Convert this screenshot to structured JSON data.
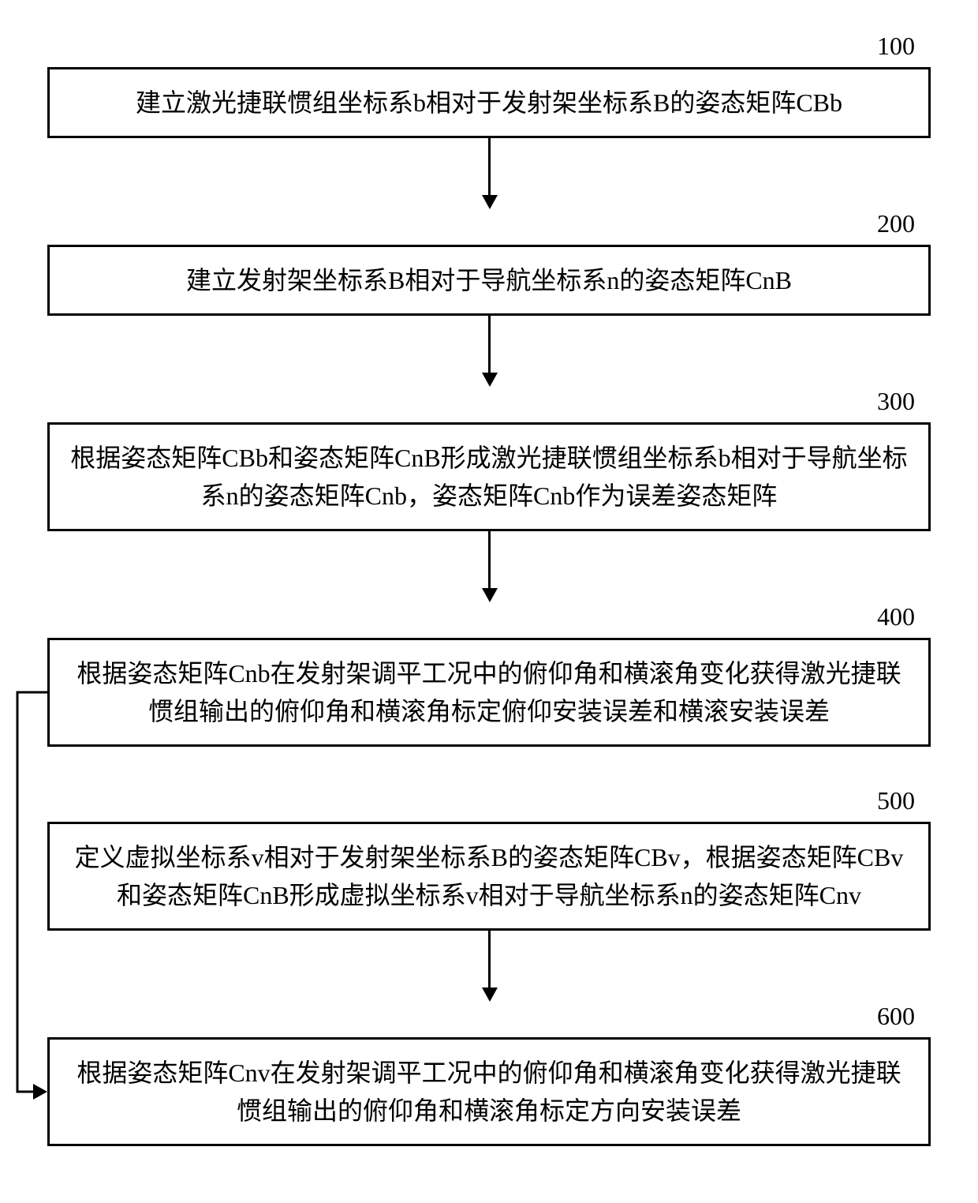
{
  "flowchart": {
    "type": "flowchart",
    "background_color": "#ffffff",
    "border_color": "#000000",
    "text_color": "#000000",
    "border_width": 3,
    "font_size": 32,
    "label_font_size": 32,
    "arrow_length": 90,
    "node_width_pct": 100,
    "nodes": [
      {
        "id": "100",
        "label": "100",
        "text": "建立激光捷联惯组坐标系b相对于发射架坐标系B的姿态矩阵CBb"
      },
      {
        "id": "200",
        "label": "200",
        "text": "建立发射架坐标系B相对于导航坐标系n的姿态矩阵CnB"
      },
      {
        "id": "300",
        "label": "300",
        "text": "根据姿态矩阵CBb和姿态矩阵CnB形成激光捷联惯组坐标系b相对于导航坐标系n的姿态矩阵Cnb，姿态矩阵Cnb作为误差姿态矩阵"
      },
      {
        "id": "400",
        "label": "400",
        "text": "根据姿态矩阵Cnb在发射架调平工况中的俯仰角和横滚角变化获得激光捷联惯组输出的俯仰角和横滚角标定俯仰安装误差和横滚安装误差"
      },
      {
        "id": "500",
        "label": "500",
        "text": "定义虚拟坐标系v相对于发射架坐标系B的姿态矩阵CBv，根据姿态矩阵CBv和姿态矩阵CnB形成虚拟坐标系v相对于导航坐标系n的姿态矩阵Cnv"
      },
      {
        "id": "600",
        "label": "600",
        "text": "根据姿态矩阵Cnv在发射架调平工况中的俯仰角和横滚角变化获得激光捷联惯组输出的俯仰角和横滚角标定方向安装误差"
      }
    ],
    "edges": [
      {
        "from": "100",
        "to": "200",
        "type": "arrow"
      },
      {
        "from": "200",
        "to": "300",
        "type": "arrow"
      },
      {
        "from": "300",
        "to": "400",
        "type": "arrow"
      },
      {
        "from": "500",
        "to": "600",
        "type": "arrow"
      }
    ],
    "feedback_edge": {
      "from": "400",
      "to": "600",
      "type": "side-arrow",
      "side": "left"
    }
  }
}
